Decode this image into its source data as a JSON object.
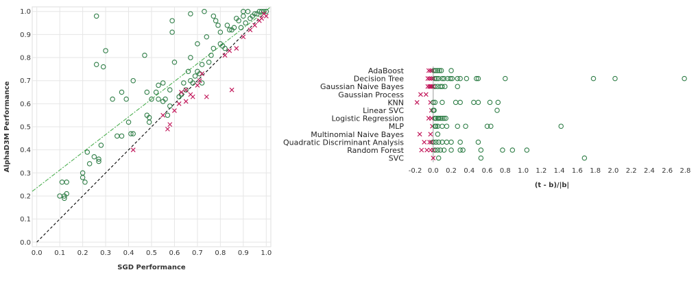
{
  "colors": {
    "circle": "#2e7d46",
    "cross": "#c2185b",
    "fit_line": "#4caf50",
    "diagonal": "#000000",
    "grid": "#e6e6e6"
  },
  "chart_data": [
    {
      "type": "scatter",
      "xlabel": "SGD Performance",
      "ylabel": "AlphaD3M Performance",
      "xlim": [
        -0.02,
        1.02
      ],
      "ylim": [
        -0.02,
        1.02
      ],
      "xticks": [
        "0.0",
        "0.1",
        "0.2",
        "0.3",
        "0.4",
        "0.5",
        "0.6",
        "0.7",
        "0.8",
        "0.9",
        "1.0"
      ],
      "yticks": [
        "0.0",
        "0.1",
        "0.2",
        "0.3",
        "0.4",
        "0.5",
        "0.6",
        "0.7",
        "0.8",
        "0.9",
        "1.0"
      ],
      "grid": true,
      "reference_lines": [
        {
          "kind": "diagonal",
          "style": "dashed",
          "from": [
            0,
            0
          ],
          "to": [
            1,
            1
          ]
        },
        {
          "kind": "trend",
          "style": "dash-dot",
          "from": [
            -0.02,
            0.22
          ],
          "to": [
            1.02,
            1.02
          ]
        }
      ],
      "series": [
        {
          "marker": "circle",
          "points": [
            [
              0.1,
              0.2
            ],
            [
              0.11,
              0.26
            ],
            [
              0.12,
              0.2
            ],
            [
              0.12,
              0.19
            ],
            [
              0.13,
              0.21
            ],
            [
              0.13,
              0.26
            ],
            [
              0.2,
              0.28
            ],
            [
              0.2,
              0.3
            ],
            [
              0.21,
              0.26
            ],
            [
              0.22,
              0.39
            ],
            [
              0.23,
              0.34
            ],
            [
              0.25,
              0.37
            ],
            [
              0.26,
              0.98
            ],
            [
              0.26,
              0.77
            ],
            [
              0.27,
              0.35
            ],
            [
              0.27,
              0.36
            ],
            [
              0.28,
              0.42
            ],
            [
              0.29,
              0.76
            ],
            [
              0.3,
              0.83
            ],
            [
              0.33,
              0.62
            ],
            [
              0.35,
              0.46
            ],
            [
              0.37,
              0.65
            ],
            [
              0.37,
              0.46
            ],
            [
              0.39,
              0.62
            ],
            [
              0.4,
              0.52
            ],
            [
              0.41,
              0.47
            ],
            [
              0.42,
              0.47
            ],
            [
              0.42,
              0.7
            ],
            [
              0.47,
              0.81
            ],
            [
              0.48,
              0.55
            ],
            [
              0.48,
              0.65
            ],
            [
              0.49,
              0.52
            ],
            [
              0.49,
              0.54
            ],
            [
              0.5,
              0.62
            ],
            [
              0.52,
              0.65
            ],
            [
              0.53,
              0.68
            ],
            [
              0.53,
              0.62
            ],
            [
              0.55,
              0.69
            ],
            [
              0.55,
              0.61
            ],
            [
              0.56,
              0.62
            ],
            [
              0.57,
              0.55
            ],
            [
              0.58,
              0.59
            ],
            [
              0.58,
              0.66
            ],
            [
              0.59,
              0.91
            ],
            [
              0.59,
              0.96
            ],
            [
              0.6,
              0.78
            ],
            [
              0.62,
              0.63
            ],
            [
              0.63,
              0.64
            ],
            [
              0.64,
              0.69
            ],
            [
              0.65,
              0.66
            ],
            [
              0.66,
              0.74
            ],
            [
              0.67,
              0.99
            ],
            [
              0.67,
              0.8
            ],
            [
              0.67,
              0.7
            ],
            [
              0.68,
              0.69
            ],
            [
              0.69,
              0.72
            ],
            [
              0.7,
              0.86
            ],
            [
              0.7,
              0.74
            ],
            [
              0.71,
              0.73
            ],
            [
              0.72,
              0.77
            ],
            [
              0.72,
              0.69
            ],
            [
              0.73,
              1.0
            ],
            [
              0.74,
              0.89
            ],
            [
              0.75,
              0.78
            ],
            [
              0.76,
              0.81
            ],
            [
              0.77,
              0.98
            ],
            [
              0.77,
              0.84
            ],
            [
              0.78,
              0.96
            ],
            [
              0.79,
              0.94
            ],
            [
              0.8,
              0.91
            ],
            [
              0.8,
              0.86
            ],
            [
              0.81,
              0.85
            ],
            [
              0.82,
              0.84
            ],
            [
              0.83,
              0.94
            ],
            [
              0.84,
              0.92
            ],
            [
              0.85,
              0.92
            ],
            [
              0.86,
              0.93
            ],
            [
              0.87,
              0.97
            ],
            [
              0.88,
              0.96
            ],
            [
              0.89,
              0.93
            ],
            [
              0.9,
              1.0
            ],
            [
              0.9,
              0.98
            ],
            [
              0.91,
              0.95
            ],
            [
              0.92,
              1.0
            ],
            [
              0.93,
              0.97
            ],
            [
              0.94,
              0.98
            ],
            [
              0.95,
              0.99
            ],
            [
              0.96,
              0.99
            ],
            [
              0.97,
              1.0
            ],
            [
              0.98,
              1.0
            ],
            [
              0.99,
              1.0
            ],
            [
              1.0,
              1.0
            ]
          ]
        },
        {
          "marker": "cross",
          "points": [
            [
              0.42,
              0.4
            ],
            [
              0.55,
              0.55
            ],
            [
              0.57,
              0.49
            ],
            [
              0.58,
              0.51
            ],
            [
              0.6,
              0.57
            ],
            [
              0.62,
              0.6
            ],
            [
              0.63,
              0.65
            ],
            [
              0.65,
              0.61
            ],
            [
              0.65,
              0.66
            ],
            [
              0.67,
              0.64
            ],
            [
              0.68,
              0.63
            ],
            [
              0.7,
              0.68
            ],
            [
              0.71,
              0.7
            ],
            [
              0.72,
              0.73
            ],
            [
              0.74,
              0.63
            ],
            [
              0.82,
              0.81
            ],
            [
              0.84,
              0.83
            ],
            [
              0.85,
              0.66
            ],
            [
              0.87,
              0.84
            ],
            [
              0.9,
              0.89
            ],
            [
              0.93,
              0.92
            ],
            [
              0.95,
              0.94
            ],
            [
              0.97,
              0.96
            ],
            [
              0.98,
              0.97
            ],
            [
              0.99,
              0.99
            ],
            [
              1.0,
              0.98
            ]
          ]
        }
      ]
    },
    {
      "type": "scatter",
      "orientation": "categorical-y",
      "xlabel": "(t - b)/|b|",
      "xlim": [
        -0.25,
        2.85
      ],
      "xticks": [
        -0.2,
        0.0,
        0.2,
        0.4,
        0.6,
        0.8,
        1.0,
        1.2,
        1.4,
        1.6,
        1.8,
        2.0,
        2.2,
        2.4,
        2.6,
        2.8
      ],
      "categories": [
        "AdaBoost",
        "Decision Tree",
        "Gaussian Naive Bayes",
        "Gaussian Process",
        "KNN",
        "Linear SVC",
        "Logistic Regression",
        "MLP",
        "Multinomial Naive Bayes",
        "Quadratic Discriminant Analysis",
        "Random Forest",
        "SVC"
      ],
      "grid": false,
      "rows": [
        {
          "circles": [
            0.01,
            0.03,
            0.05,
            0.07,
            0.09,
            0.2
          ],
          "crosses": [
            -0.05,
            -0.03,
            -0.01
          ]
        },
        {
          "circles": [
            0.02,
            0.04,
            0.06,
            0.1,
            0.12,
            0.16,
            0.19,
            0.21,
            0.27,
            0.3,
            0.37,
            0.48,
            0.5,
            0.8,
            1.78,
            2.02,
            2.79
          ],
          "crosses": [
            -0.06,
            -0.04,
            -0.02,
            0.0
          ]
        },
        {
          "circles": [
            0.02,
            0.05,
            0.08,
            0.1,
            0.13,
            0.27
          ],
          "crosses": [
            -0.06,
            -0.04,
            -0.03,
            -0.02,
            -0.01,
            0.0
          ]
        },
        {
          "circles": [],
          "crosses": [
            -0.14,
            -0.08
          ]
        },
        {
          "circles": [
            0.0,
            0.02,
            0.1,
            0.25,
            0.3,
            0.45,
            0.5,
            0.63,
            0.72
          ],
          "crosses": [
            -0.18,
            -0.03
          ]
        },
        {
          "circles": [
            0.0,
            0.01,
            0.71
          ],
          "crosses": [
            -0.02
          ]
        },
        {
          "circles": [
            0.02,
            0.03,
            0.05,
            0.06,
            0.08,
            0.1,
            0.12,
            0.14
          ],
          "crosses": [
            -0.05,
            -0.02
          ]
        },
        {
          "circles": [
            0.02,
            0.03,
            0.05,
            0.1,
            0.15,
            0.27,
            0.36,
            0.6,
            0.64,
            1.42
          ],
          "crosses": [
            -0.01
          ]
        },
        {
          "circles": [
            0.05
          ],
          "crosses": [
            -0.15,
            -0.03
          ]
        },
        {
          "circles": [
            0.0,
            0.03,
            0.06,
            0.1,
            0.15,
            0.2,
            0.3,
            0.5
          ],
          "crosses": [
            -0.1,
            -0.04,
            -0.02
          ]
        },
        {
          "circles": [
            0.02,
            0.05,
            0.08,
            0.12,
            0.2,
            0.3,
            0.33,
            0.53,
            0.77,
            0.88,
            1.04
          ],
          "crosses": [
            -0.13,
            -0.07,
            -0.03,
            0.0
          ]
        },
        {
          "circles": [
            0.06,
            0.53,
            1.68
          ],
          "crosses": [
            0.0
          ]
        }
      ]
    }
  ]
}
